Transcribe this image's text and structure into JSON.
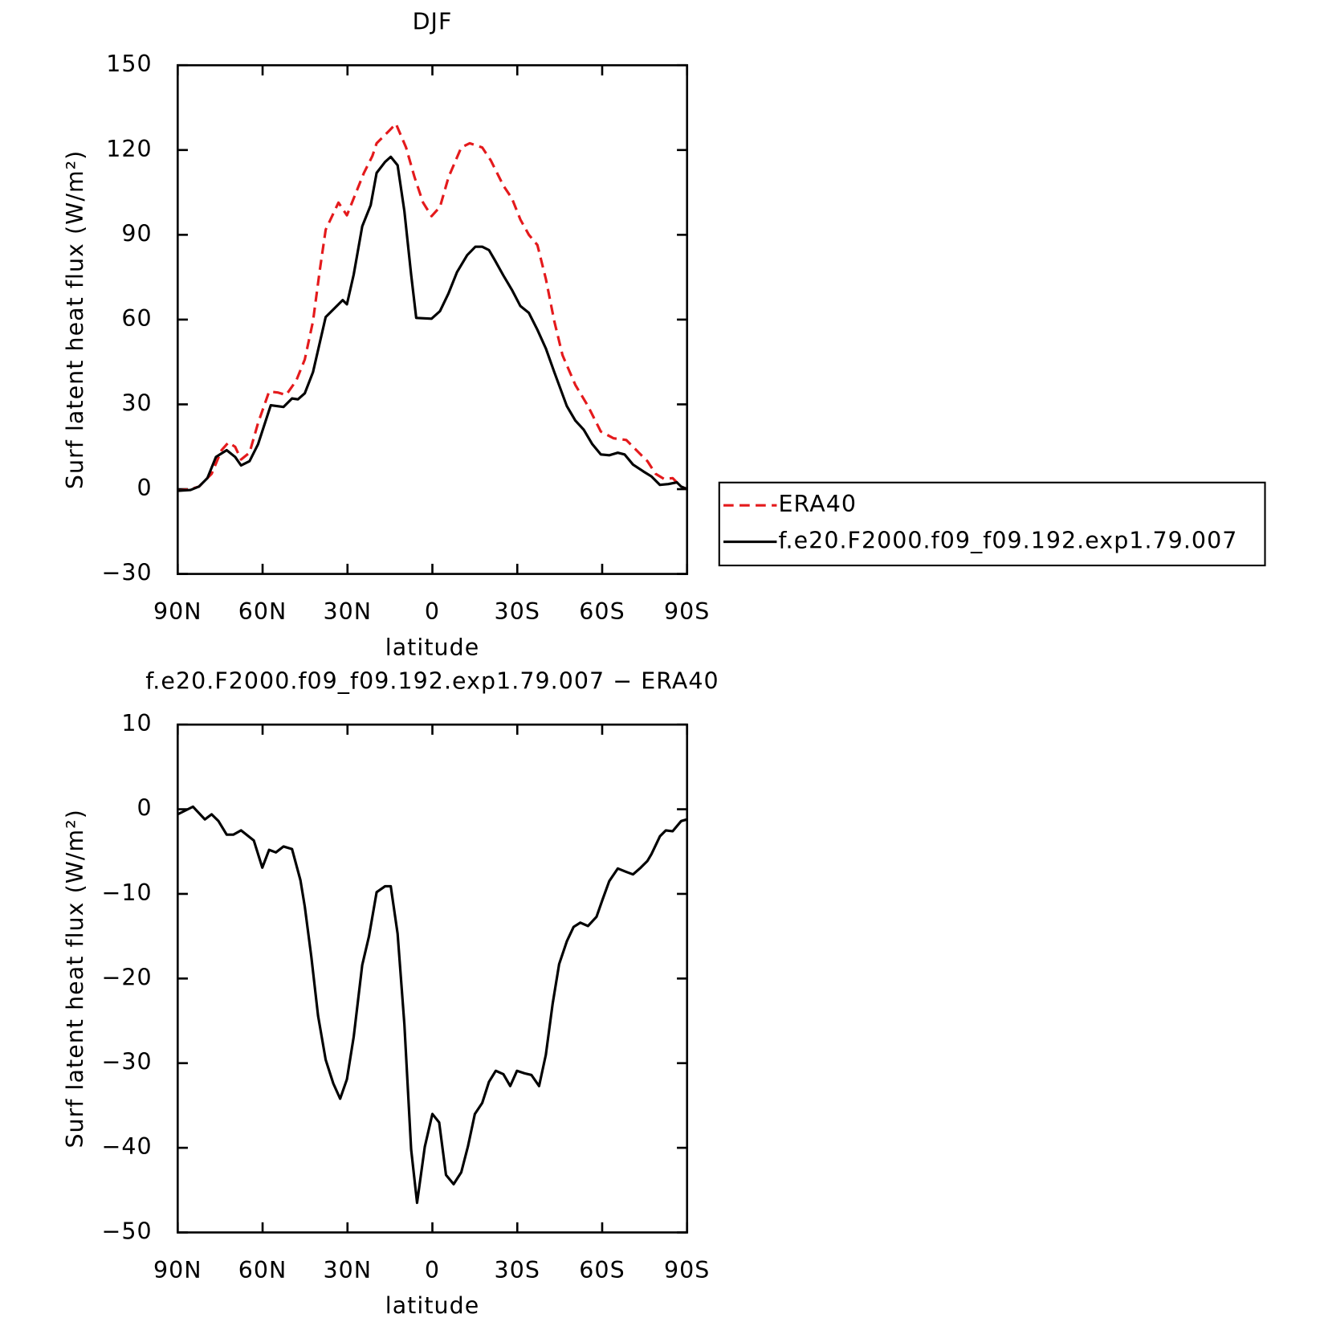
{
  "chart_data": [
    {
      "type": "line",
      "title": "DJF",
      "xlabel": "latitude",
      "ylabel": "Surf latent heat flux (W/m²)",
      "xlim": [
        90,
        -90
      ],
      "xticks": [
        {
          "value": 90,
          "label": "90N"
        },
        {
          "value": 60,
          "label": "60N"
        },
        {
          "value": 30,
          "label": "30N"
        },
        0,
        {
          "value": -30,
          "label": "30S"
        },
        {
          "value": -60,
          "label": "60S"
        },
        {
          "value": -90,
          "label": "90S"
        }
      ],
      "ylim": [
        -30,
        150
      ],
      "yticks": [
        {
          "value": -30,
          "label": "−30"
        },
        0,
        30,
        60,
        90,
        120,
        150
      ],
      "legend": "right",
      "series": [
        {
          "name": "ERA40",
          "color": "#e41a1c",
          "dash": true,
          "x": [
            90,
            85.5,
            82.5,
            78.0,
            74.5,
            72.1,
            69.7,
            67.6,
            64.6,
            61.6,
            57.7,
            54.7,
            51.7,
            48.1,
            45.1,
            42.2,
            39.8,
            37.7,
            33.2,
            30.2,
            27.2,
            24.2,
            21.2,
            19.7,
            15.2,
            12.9,
            9.3,
            6.3,
            3.3,
            0.3,
            -2.7,
            -5.7,
            -10.2,
            -13.2,
            -17.6,
            -20.6,
            -25.1,
            -28.1,
            -31.1,
            -34.1,
            -37.1,
            -40.1,
            -43.1,
            -46.0,
            -50.5,
            -55.0,
            -59.5,
            -64.0,
            -68.5,
            -73.0,
            -76.0,
            -78.9,
            -81.9,
            -84.9,
            -87.9,
            -90
          ],
          "values": [
            -0.6,
            0,
            0.9,
            5.4,
            13.8,
            16.5,
            15,
            10.5,
            12.9,
            23.4,
            34.5,
            34.2,
            33.3,
            38.4,
            45.9,
            59.4,
            77.4,
            91.8,
            101.4,
            96.9,
            104.4,
            111.9,
            117.9,
            122.4,
            126.9,
            129.3,
            120.9,
            110.4,
            101.4,
            96.6,
            99.9,
            110.4,
            120.9,
            122.4,
            120.9,
            116.4,
            107.4,
            102.9,
            95.4,
            90,
            86.4,
            74.4,
            59.4,
            47.4,
            36.9,
            29.4,
            20.4,
            18,
            17.4,
            12.9,
            9.9,
            5.4,
            3.6,
            3.9,
            0.9,
            0
          ]
        },
        {
          "name": "f.e20.F2000.f09_f09.192.exp1.79.007",
          "color": "#000000",
          "dash": false,
          "x": [
            90,
            85.5,
            82.5,
            79.5,
            76.5,
            72.7,
            69.7,
            67.6,
            64.6,
            61.6,
            57.1,
            52.6,
            49.6,
            47.5,
            45.1,
            42.2,
            37.7,
            31.7,
            30.2,
            27.8,
            24.8,
            21.8,
            19.7,
            16.7,
            14.7,
            12.3,
            9.9,
            7.5,
            5.7,
            0.3,
            -2.7,
            -5.7,
            -8.7,
            -12.3,
            -15.2,
            -17.6,
            -20.0,
            -22.1,
            -25.1,
            -28.1,
            -31.1,
            -34.1,
            -37.1,
            -40.1,
            -43.1,
            -47.5,
            -50.5,
            -53.5,
            -56.5,
            -59.5,
            -62.5,
            -65.5,
            -67.9,
            -70.9,
            -74.5,
            -77.4,
            -80.4,
            -83.4,
            -86.4,
            -87.9,
            -90
          ],
          "values": [
            -0.6,
            -0.3,
            0.9,
            3.9,
            11.4,
            13.8,
            11.4,
            8.4,
            9.9,
            15.9,
            29.7,
            29.1,
            32.1,
            31.8,
            33.9,
            41.4,
            60.9,
            66.9,
            65.4,
            75.9,
            93,
            100.5,
            111.9,
            115.8,
            117.6,
            114.6,
            98.4,
            75.9,
            60.6,
            60.3,
            63,
            69.3,
            76.8,
            82.8,
            85.8,
            85.8,
            84.6,
            81,
            75.6,
            70.5,
            64.8,
            62.4,
            56.4,
            49.8,
            41.4,
            29.4,
            24.3,
            21,
            15.9,
            12.3,
            12,
            12.9,
            12.3,
            8.7,
            6.3,
            4.5,
            1.5,
            1.8,
            2.4,
            0.9,
            0
          ]
        }
      ]
    },
    {
      "type": "line",
      "title": "f.e20.F2000.f09_f09.192.exp1.79.007 − ERA40",
      "xlabel": "latitude",
      "ylabel": "Surf latent heat flux (W/m²)",
      "xlim": [
        90,
        -90
      ],
      "xticks": [
        {
          "value": 90,
          "label": "90N"
        },
        {
          "value": 60,
          "label": "60N"
        },
        {
          "value": 30,
          "label": "30N"
        },
        0,
        {
          "value": -30,
          "label": "30S"
        },
        {
          "value": -60,
          "label": "60S"
        },
        {
          "value": -90,
          "label": "90S"
        }
      ],
      "ylim": [
        -50,
        10
      ],
      "yticks": [
        {
          "value": -50,
          "label": "−50"
        },
        {
          "value": -40,
          "label": "−40"
        },
        {
          "value": -30,
          "label": "−30"
        },
        {
          "value": -20,
          "label": "−20"
        },
        {
          "value": -10,
          "label": "−10"
        },
        0,
        10
      ],
      "series": [
        {
          "color": "#000000",
          "dash": false,
          "x": [
            90,
            84.6,
            80.4,
            78.0,
            75.6,
            72.7,
            70.3,
            67.6,
            63.1,
            60.1,
            57.7,
            55.3,
            52.6,
            49.6,
            46.6,
            45.1,
            42.8,
            40.4,
            37.7,
            35.0,
            32.6,
            30.2,
            27.8,
            24.8,
            22.4,
            19.7,
            16.7,
            14.7,
            12.3,
            9.9,
            7.5,
            5.4,
            2.7,
            0.0,
            -2.4,
            -4.8,
            -7.5,
            -10.2,
            -12.6,
            -15.0,
            -17.6,
            -20.0,
            -22.4,
            -25.1,
            -27.5,
            -29.9,
            -32.6,
            -35.0,
            -37.7,
            -40.1,
            -42.5,
            -44.8,
            -47.5,
            -49.9,
            -52.3,
            -55.0,
            -58.0,
            -60.1,
            -62.5,
            -65.5,
            -68.5,
            -70.9,
            -73.6,
            -76.0,
            -77.4,
            -80.4,
            -82.5,
            -84.9,
            -87.9,
            -90
          ],
          "values": [
            -0.6,
            0.3,
            -1.2,
            -0.6,
            -1.4,
            -3,
            -3,
            -2.5,
            -3.7,
            -6.9,
            -4.8,
            -5.1,
            -4.4,
            -4.7,
            -8.4,
            -11.5,
            -17.4,
            -24.4,
            -29.6,
            -32.4,
            -34.2,
            -31.9,
            -26.9,
            -18.4,
            -15,
            -9.8,
            -9.1,
            -9.1,
            -14.7,
            -25.4,
            -40.2,
            -46.5,
            -39.9,
            -36,
            -37,
            -43.2,
            -44.3,
            -42.9,
            -39.8,
            -36,
            -34.7,
            -32.2,
            -30.9,
            -31.3,
            -32.7,
            -30.9,
            -31.2,
            -31.4,
            -32.7,
            -29,
            -23,
            -18.3,
            -15.6,
            -13.9,
            -13.4,
            -13.8,
            -12.7,
            -10.7,
            -8.5,
            -7,
            -7.4,
            -7.7,
            -6.9,
            -6.1,
            -5.3,
            -3.2,
            -2.5,
            -2.6,
            -1.4,
            -1.2
          ]
        }
      ]
    }
  ]
}
